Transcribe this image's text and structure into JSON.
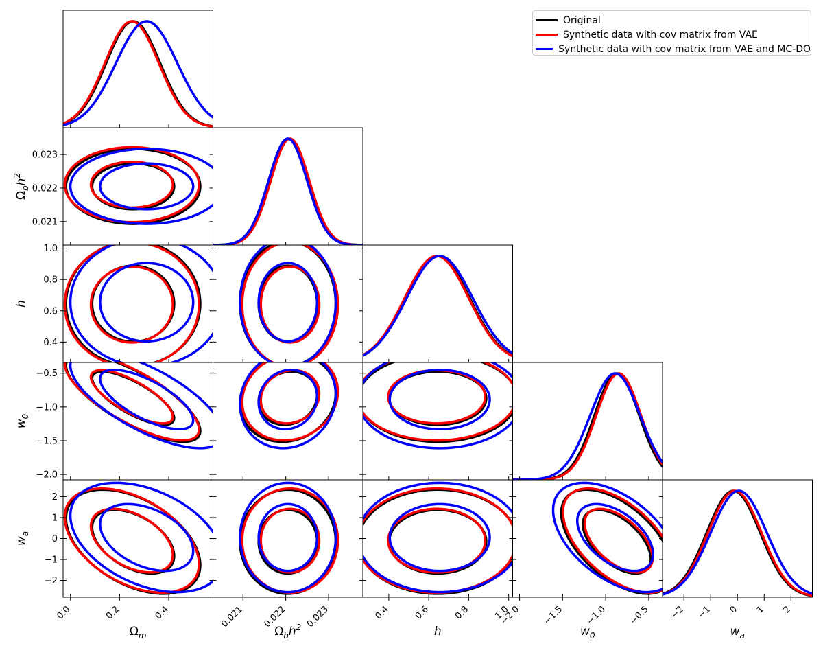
{
  "chart_data": {
    "type": "triangle_corner",
    "parameters": [
      {
        "name": "omega_m",
        "label": "Ω_m",
        "range": [
          -0.03,
          0.58
        ],
        "ticks": [
          0.0,
          0.2,
          0.4
        ],
        "tick_labels": [
          "0.0",
          "0.2",
          "0.4"
        ]
      },
      {
        "name": "omega_b_h2",
        "label": "Ω_b h²",
        "range": [
          0.0203,
          0.0238
        ],
        "ticks": [
          0.021,
          0.022,
          0.023
        ],
        "tick_labels": [
          "0.021",
          "0.022",
          "0.023"
        ]
      },
      {
        "name": "h",
        "label": "h",
        "range": [
          0.27,
          1.02
        ],
        "ticks": [
          0.4,
          0.6,
          0.8,
          1.0
        ],
        "tick_labels": [
          "0.4",
          "0.6",
          "0.8",
          "1.0"
        ]
      },
      {
        "name": "w0",
        "label": "w₀",
        "range": [
          -2.08,
          -0.34
        ],
        "ticks": [
          -2.0,
          -1.5,
          -1.0,
          -0.5
        ],
        "tick_labels": [
          "−2.0",
          "−1.5",
          "−1.0",
          "−0.5"
        ]
      },
      {
        "name": "wa",
        "label": "w_a",
        "range": [
          -2.8,
          2.8
        ],
        "ticks": [
          -2,
          -1,
          0,
          1,
          2
        ],
        "tick_labels": [
          "−2",
          "−1",
          "0",
          "1",
          "2"
        ]
      }
    ],
    "series": [
      {
        "name": "Original",
        "color": "#000000",
        "marginals": [
          {
            "mean": 0.255,
            "sigma": 0.11
          },
          {
            "mean": 0.02205,
            "sigma": 0.00045
          },
          {
            "mean": 0.645,
            "sigma": 0.16
          },
          {
            "mean": -0.87,
            "sigma": 0.26
          },
          {
            "mean": -0.15,
            "sigma": 1.0
          }
        ],
        "correlations": {
          "1-0": 0.0,
          "2-0": 0.0,
          "2-1": 0.0,
          "3-0": -0.75,
          "3-1": 0.12,
          "3-2": 0.0,
          "4-0": -0.45,
          "4-1": 0.0,
          "4-2": 0.0,
          "4-3": -0.55
        }
      },
      {
        "name": "Synthetic data with cov matrix from VAE",
        "color": "#ff0000",
        "marginals": [
          {
            "mean": 0.25,
            "sigma": 0.11
          },
          {
            "mean": 0.0221,
            "sigma": 0.00045
          },
          {
            "mean": 0.64,
            "sigma": 0.16
          },
          {
            "mean": -0.85,
            "sigma": 0.26
          },
          {
            "mean": -0.1,
            "sigma": 1.0
          }
        ],
        "correlations": {
          "1-0": 0.0,
          "2-0": 0.0,
          "2-1": 0.0,
          "3-0": -0.75,
          "3-1": 0.12,
          "3-2": 0.0,
          "4-0": -0.45,
          "4-1": 0.0,
          "4-2": 0.0,
          "4-3": -0.55
        }
      },
      {
        "name": "Synthetic data with cov matrix from VAE and MC-DO",
        "color": "#0000ff",
        "marginals": [
          {
            "mean": 0.31,
            "sigma": 0.125
          },
          {
            "mean": 0.02205,
            "sigma": 0.00045
          },
          {
            "mean": 0.655,
            "sigma": 0.165
          },
          {
            "mean": -0.89,
            "sigma": 0.29
          },
          {
            "mean": 0.05,
            "sigma": 1.05
          }
        ],
        "correlations": {
          "1-0": 0.0,
          "2-0": 0.0,
          "2-1": 0.0,
          "3-0": -0.7,
          "3-1": 0.1,
          "3-2": 0.0,
          "4-0": -0.4,
          "4-1": 0.0,
          "4-2": 0.0,
          "4-3": -0.5
        }
      }
    ],
    "contour_levels": [
      "68%",
      "95%"
    ]
  },
  "legend": {
    "items": [
      {
        "label": "Original",
        "color": "#000000"
      },
      {
        "label": "Synthetic data with cov matrix from VAE",
        "color": "#ff0000"
      },
      {
        "label": "Synthetic data with cov matrix from VAE and MC-DO",
        "color": "#0000ff"
      }
    ]
  }
}
